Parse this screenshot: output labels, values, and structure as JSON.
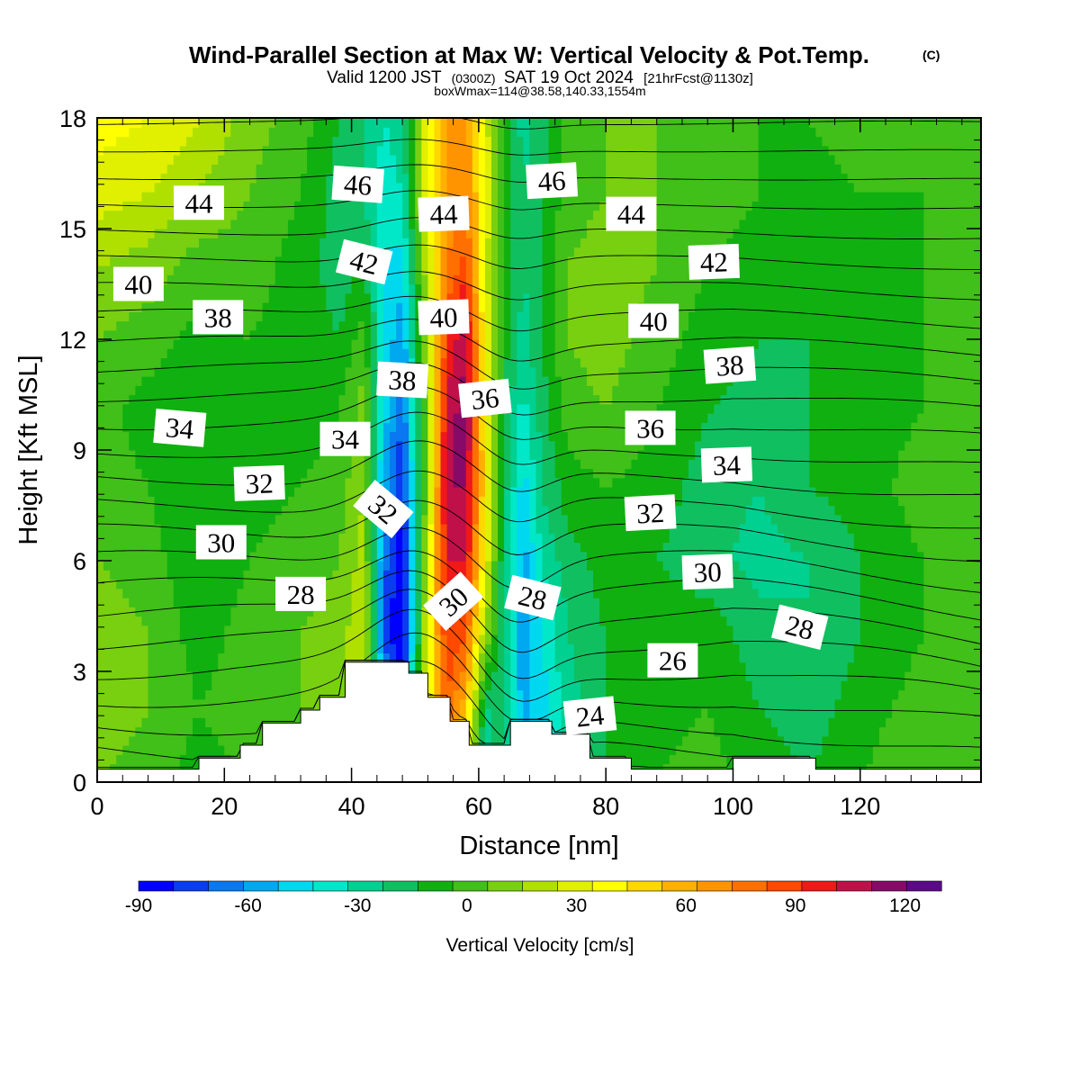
{
  "header": {
    "title": "Wind-Parallel Section at Max W: Vertical Velocity & Pot.Temp.",
    "copyright": "(C)",
    "valid_prefix": "Valid 1200 JST",
    "valid_utc": "(0300Z)",
    "valid_date": "SAT 19 Oct 2024",
    "forecast_info": "[21hrFcst@1130z]",
    "box_info": "boxWmax=114@38.58,140.33,1554m"
  },
  "chart_data": {
    "type": "heatmap",
    "xlabel": "Distance [nm]",
    "ylabel": "Height [Kft MSL]",
    "xlim": [
      0,
      139
    ],
    "ylim": [
      0,
      18
    ],
    "x_ticks": [
      0,
      20,
      40,
      60,
      80,
      100,
      120
    ],
    "x_tick_labels": [
      "0",
      "20",
      "40",
      "60",
      "80",
      "100",
      "120"
    ],
    "y_ticks": [
      0,
      3,
      6,
      9,
      12,
      15,
      18
    ],
    "y_tick_labels": [
      "0",
      "3",
      "6",
      "9",
      "12",
      "15",
      "18"
    ],
    "field": {
      "name": "Vertical Velocity [cm/s]",
      "x": [
        0,
        8,
        16,
        24,
        32,
        38,
        42,
        45,
        48,
        52,
        55,
        58,
        61,
        64,
        67,
        70,
        74,
        80,
        88,
        96,
        104,
        112,
        120,
        130,
        139
      ],
      "y": [
        0,
        2,
        4,
        6,
        8,
        10,
        12,
        14,
        16,
        18
      ],
      "w": [
        [
          10,
          5,
          -5,
          0,
          5,
          15,
          10,
          -30,
          -40,
          20,
          60,
          30,
          -30,
          -10,
          -50,
          -40,
          -20,
          -10,
          0,
          5,
          -5,
          -10,
          0,
          10,
          5
        ],
        [
          15,
          10,
          0,
          5,
          10,
          20,
          20,
          -50,
          -70,
          40,
          90,
          60,
          -20,
          -20,
          -55,
          -45,
          -25,
          -10,
          -5,
          0,
          -10,
          -15,
          -5,
          5,
          0
        ],
        [
          15,
          10,
          -5,
          5,
          10,
          15,
          30,
          -70,
          -95,
          40,
          100,
          90,
          20,
          -20,
          -60,
          -40,
          -20,
          -10,
          -5,
          -5,
          -15,
          -20,
          -10,
          0,
          0
        ],
        [
          10,
          5,
          -10,
          0,
          5,
          10,
          25,
          -65,
          -90,
          30,
          110,
          110,
          40,
          -20,
          -55,
          -30,
          -15,
          -5,
          -10,
          -15,
          -25,
          -20,
          -10,
          0,
          5
        ],
        [
          5,
          0,
          -10,
          -5,
          0,
          5,
          20,
          -55,
          -80,
          20,
          120,
          120,
          50,
          -15,
          -45,
          -20,
          -5,
          0,
          -5,
          -15,
          -20,
          -10,
          -5,
          5,
          5
        ],
        [
          5,
          -5,
          -10,
          -5,
          -5,
          0,
          15,
          -45,
          -70,
          20,
          115,
          125,
          45,
          -10,
          -35,
          -15,
          5,
          10,
          0,
          -10,
          -15,
          -10,
          -5,
          0,
          5
        ],
        [
          10,
          5,
          -5,
          0,
          -5,
          -10,
          5,
          -40,
          -60,
          25,
          100,
          120,
          40,
          -5,
          -25,
          -10,
          10,
          15,
          5,
          -5,
          -10,
          -10,
          -5,
          0,
          0
        ],
        [
          20,
          15,
          5,
          5,
          -5,
          -15,
          -10,
          -40,
          -45,
          30,
          80,
          95,
          35,
          -5,
          -20,
          -10,
          10,
          15,
          10,
          0,
          -5,
          -10,
          -5,
          0,
          0
        ],
        [
          35,
          30,
          20,
          10,
          0,
          -15,
          -20,
          -35,
          -30,
          40,
          70,
          80,
          40,
          0,
          -20,
          -10,
          5,
          10,
          10,
          5,
          0,
          -5,
          0,
          0,
          5
        ],
        [
          45,
          40,
          30,
          15,
          5,
          -10,
          -20,
          -30,
          -25,
          40,
          70,
          75,
          35,
          0,
          -25,
          -15,
          5,
          10,
          10,
          5,
          0,
          0,
          5,
          5,
          5
        ]
      ]
    },
    "colorbar": {
      "label": "Vertical Velocity [cm/s]",
      "levels": [
        -90,
        -80,
        -70,
        -60,
        -50,
        -40,
        -30,
        -20,
        -10,
        0,
        10,
        20,
        30,
        40,
        50,
        60,
        70,
        80,
        90,
        100,
        110,
        120,
        130
      ],
      "tick_labels": [
        "-90",
        "-60",
        "-30",
        "0",
        "30",
        "60",
        "90",
        "120"
      ],
      "colors": [
        "#0000ff",
        "#0a3cf0",
        "#0a78f0",
        "#00a8f0",
        "#00d8f0",
        "#00e8c8",
        "#00d090",
        "#10c060",
        "#10b010",
        "#40c018",
        "#78d010",
        "#b0e000",
        "#e0f000",
        "#ffff00",
        "#ffd800",
        "#ffb000",
        "#ff9400",
        "#ff7000",
        "#ff4800",
        "#f01818",
        "#c0104a",
        "#880a68",
        "#5a0a88"
      ]
    },
    "theta": {
      "name": "Potential Temperature",
      "levels": [
        24,
        26,
        28,
        30,
        32,
        34,
        36,
        38,
        40,
        42,
        44,
        46
      ],
      "labels": [
        {
          "text": "46",
          "x": 41,
          "y": 16.2,
          "angle": 4
        },
        {
          "text": "46",
          "x": 71.5,
          "y": 16.3,
          "angle": -3
        },
        {
          "text": "44",
          "x": 16,
          "y": 15.7,
          "angle": 0
        },
        {
          "text": "44",
          "x": 54.5,
          "y": 15.4,
          "angle": -2
        },
        {
          "text": "44",
          "x": 84,
          "y": 15.4,
          "angle": 0
        },
        {
          "text": "42",
          "x": 42,
          "y": 14.1,
          "angle": 14
        },
        {
          "text": "42",
          "x": 97,
          "y": 14.1,
          "angle": -2
        },
        {
          "text": "40",
          "x": 6.5,
          "y": 13.5,
          "angle": 0
        },
        {
          "text": "40",
          "x": 54.5,
          "y": 12.6,
          "angle": -2
        },
        {
          "text": "40",
          "x": 87.5,
          "y": 12.5,
          "angle": 0
        },
        {
          "text": "38",
          "x": 19,
          "y": 12.6,
          "angle": 0
        },
        {
          "text": "38",
          "x": 48,
          "y": 10.9,
          "angle": 3
        },
        {
          "text": "38",
          "x": 99.5,
          "y": 11.3,
          "angle": -4
        },
        {
          "text": "36",
          "x": 61,
          "y": 10.4,
          "angle": -6
        },
        {
          "text": "36",
          "x": 87,
          "y": 9.6,
          "angle": 0
        },
        {
          "text": "34",
          "x": 13,
          "y": 9.6,
          "angle": 5
        },
        {
          "text": "34",
          "x": 39,
          "y": 9.3,
          "angle": 0
        },
        {
          "text": "34",
          "x": 99,
          "y": 8.6,
          "angle": -2
        },
        {
          "text": "32",
          "x": 25.5,
          "y": 8.1,
          "angle": -2
        },
        {
          "text": "32",
          "x": 45,
          "y": 7.4,
          "angle": 40
        },
        {
          "text": "32",
          "x": 87,
          "y": 7.3,
          "angle": -3
        },
        {
          "text": "30",
          "x": 19.5,
          "y": 6.5,
          "angle": 0
        },
        {
          "text": "30",
          "x": 56,
          "y": 4.9,
          "angle": -42
        },
        {
          "text": "30",
          "x": 96,
          "y": 5.7,
          "angle": -2
        },
        {
          "text": "28",
          "x": 32,
          "y": 5.1,
          "angle": 0
        },
        {
          "text": "28",
          "x": 68.5,
          "y": 5.0,
          "angle": 14
        },
        {
          "text": "28",
          "x": 110.5,
          "y": 4.2,
          "angle": 14
        },
        {
          "text": "26",
          "x": 90.5,
          "y": 3.3,
          "angle": 0
        },
        {
          "text": "24",
          "x": 77.5,
          "y": 1.8,
          "angle": -6
        }
      ]
    },
    "terrain": {
      "x": [
        0,
        16,
        16,
        22.5,
        22.5,
        26,
        26,
        32,
        32,
        35,
        35,
        39,
        39,
        49,
        49,
        52,
        52,
        55.5,
        55.5,
        58.5,
        58.5,
        65,
        65,
        71.5,
        71.5,
        77.5,
        77.5,
        84,
        84,
        100,
        100,
        113,
        113,
        139
      ],
      "y": [
        0.35,
        0.35,
        0.65,
        0.65,
        1.0,
        1.0,
        1.6,
        1.6,
        1.95,
        1.95,
        2.3,
        2.3,
        3.25,
        3.25,
        2.95,
        2.95,
        2.3,
        2.3,
        1.65,
        1.65,
        1.0,
        1.0,
        1.65,
        1.65,
        1.3,
        1.3,
        0.65,
        0.65,
        0.35,
        0.35,
        0.65,
        0.65,
        0.35,
        0.35
      ]
    }
  }
}
